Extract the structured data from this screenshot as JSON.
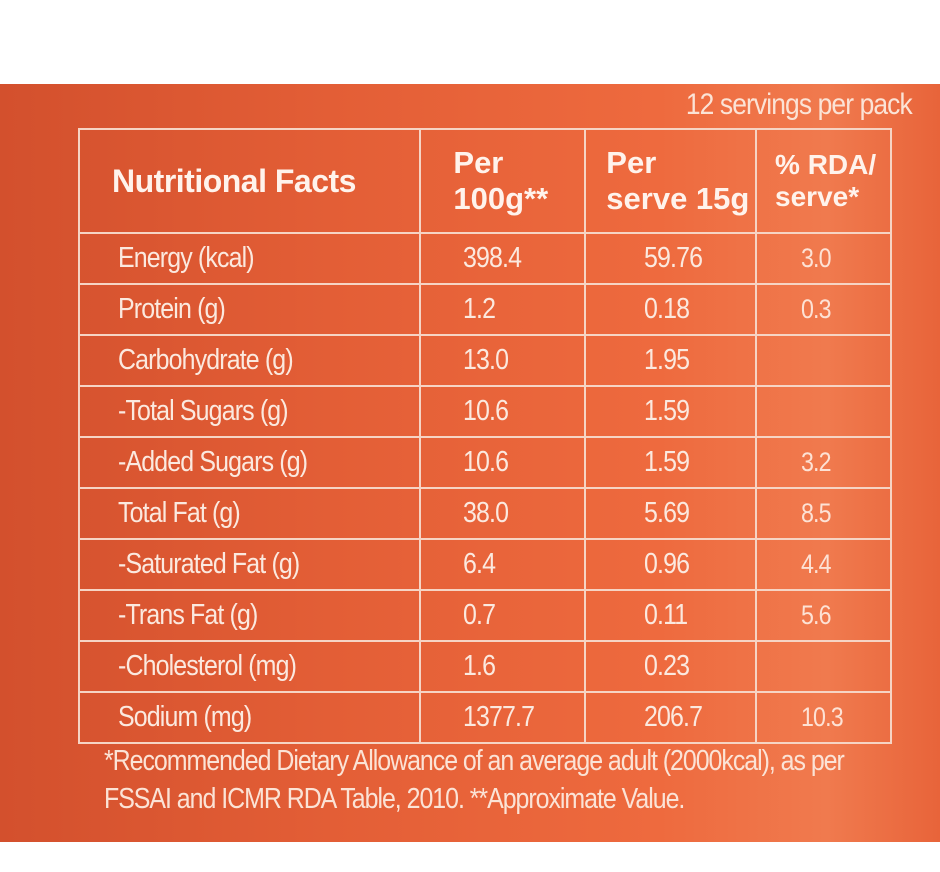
{
  "servings_text": "12 servings per pack",
  "header": {
    "title": "Nutritional Facts",
    "col1_line1": "Per",
    "col1_line2": "100g**",
    "col2_line1": "Per",
    "col2_line2": "serve 15g",
    "col3_line1": "% RDA/",
    "col3_line2": "serve*"
  },
  "rows": [
    {
      "name": "Energy (kcal)",
      "per100": "398.4",
      "perServe": "59.76",
      "rda": "3.0"
    },
    {
      "name": "Protein (g)",
      "per100": "1.2",
      "perServe": "0.18",
      "rda": "0.3"
    },
    {
      "name": "Carbohydrate (g)",
      "per100": "13.0",
      "perServe": "1.95",
      "rda": ""
    },
    {
      "name": "-Total Sugars (g)",
      "per100": "10.6",
      "perServe": "1.59",
      "rda": ""
    },
    {
      "name": "-Added Sugars (g)",
      "per100": "10.6",
      "perServe": "1.59",
      "rda": "3.2"
    },
    {
      "name": "Total Fat (g)",
      "per100": "38.0",
      "perServe": "5.69",
      "rda": "8.5"
    },
    {
      "name": "-Saturated Fat (g)",
      "per100": "6.4",
      "perServe": "0.96",
      "rda": "4.4"
    },
    {
      "name": "-Trans Fat (g)",
      "per100": "0.7",
      "perServe": "0.11",
      "rda": "5.6"
    },
    {
      "name": "-Cholesterol (mg)",
      "per100": "1.6",
      "perServe": "0.23",
      "rda": ""
    },
    {
      "name": "Sodium (mg)",
      "per100": "1377.7",
      "perServe": "206.7",
      "rda": "10.3"
    }
  ],
  "footnote": {
    "line1": "*Recommended Dietary Allowance of an average adult (2000kcal), as per",
    "line2": "FSSAI and ICMR RDA Table, 2010. **Approximate Value."
  },
  "colors": {
    "panel_orange": "#e35e36",
    "text_cream": "#fbe9df",
    "border": "#f6d4c4"
  }
}
